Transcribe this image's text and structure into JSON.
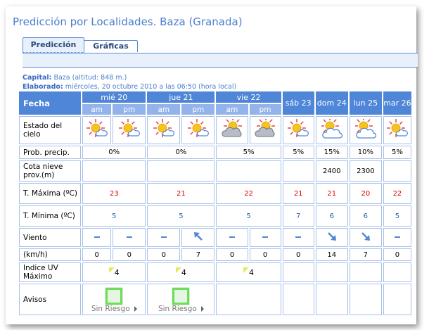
{
  "title": "Predicción por Localidades. Baza (Granada)",
  "tabs": [
    {
      "label": "Predicción",
      "active": true
    },
    {
      "label": "Gráficas",
      "active": false
    }
  ],
  "meta": {
    "capital_label": "Capital:",
    "capital_value": "Baza (altitud: 848 m.)",
    "elaborado_label": "Elaborado:",
    "elaborado_value": "miércoles, 20 octubre 2010 a las 06:50 (hora local)"
  },
  "table": {
    "fecha_label": "Fecha",
    "days": [
      {
        "label": "mié 20",
        "periods": [
          "am",
          "pm"
        ]
      },
      {
        "label": "jue 21",
        "periods": [
          "am",
          "pm"
        ]
      },
      {
        "label": "vie 22",
        "periods": [
          "am",
          "pm"
        ]
      },
      {
        "label": "sáb 23",
        "periods": []
      },
      {
        "label": "dom 24",
        "periods": []
      },
      {
        "label": "lun 25",
        "periods": []
      },
      {
        "label": "mar 26",
        "periods": []
      }
    ],
    "sky": {
      "label": "Estado del cielo",
      "icons": [
        "sun-cloud",
        "sun-cloud",
        "sun-cloud",
        "sun-cloud",
        "cloudy-sun",
        "cloudy-sun",
        "sun-cloud",
        "sun-big-cloud",
        "sun-big-cloud",
        "sun-cloud"
      ]
    },
    "precip": {
      "label": "Prob. precip.",
      "values": [
        "0%",
        "0%",
        "5%",
        "5%",
        "15%",
        "10%",
        "5%"
      ]
    },
    "snow": {
      "label": "Cota nieve prov.(m)",
      "values": [
        "",
        "",
        "",
        "",
        "2400",
        "2300",
        ""
      ]
    },
    "tmax": {
      "label": "T. Máxima (ºC)",
      "values": [
        "23",
        "21",
        "22",
        "21",
        "21",
        "20",
        "22"
      ],
      "color": "#e00000"
    },
    "tmin": {
      "label": "T. Mínima (ºC)",
      "values": [
        "5",
        "5",
        "5",
        "7",
        "6",
        "6",
        "5"
      ],
      "color": "#2a5db0"
    },
    "wind": {
      "label": "Viento",
      "directions": [
        "calm",
        "calm",
        "calm",
        "arrow-up-left",
        "calm",
        "calm",
        "calm",
        "arrow-down-right",
        "arrow-down-right",
        "calm"
      ]
    },
    "speed": {
      "label": "(km/h)",
      "values": [
        "0",
        "0",
        "0",
        "7",
        "0",
        "0",
        "0",
        "14",
        "7",
        "0"
      ]
    },
    "uv": {
      "label": "Indice UV Máximo",
      "values": [
        "4",
        "4",
        "4",
        "",
        "",
        "",
        ""
      ]
    },
    "avisos": {
      "label": "Avisos",
      "values": [
        "Sin Riesgo",
        "Sin Riesgo",
        "",
        "",
        "",
        "",
        ""
      ]
    }
  }
}
